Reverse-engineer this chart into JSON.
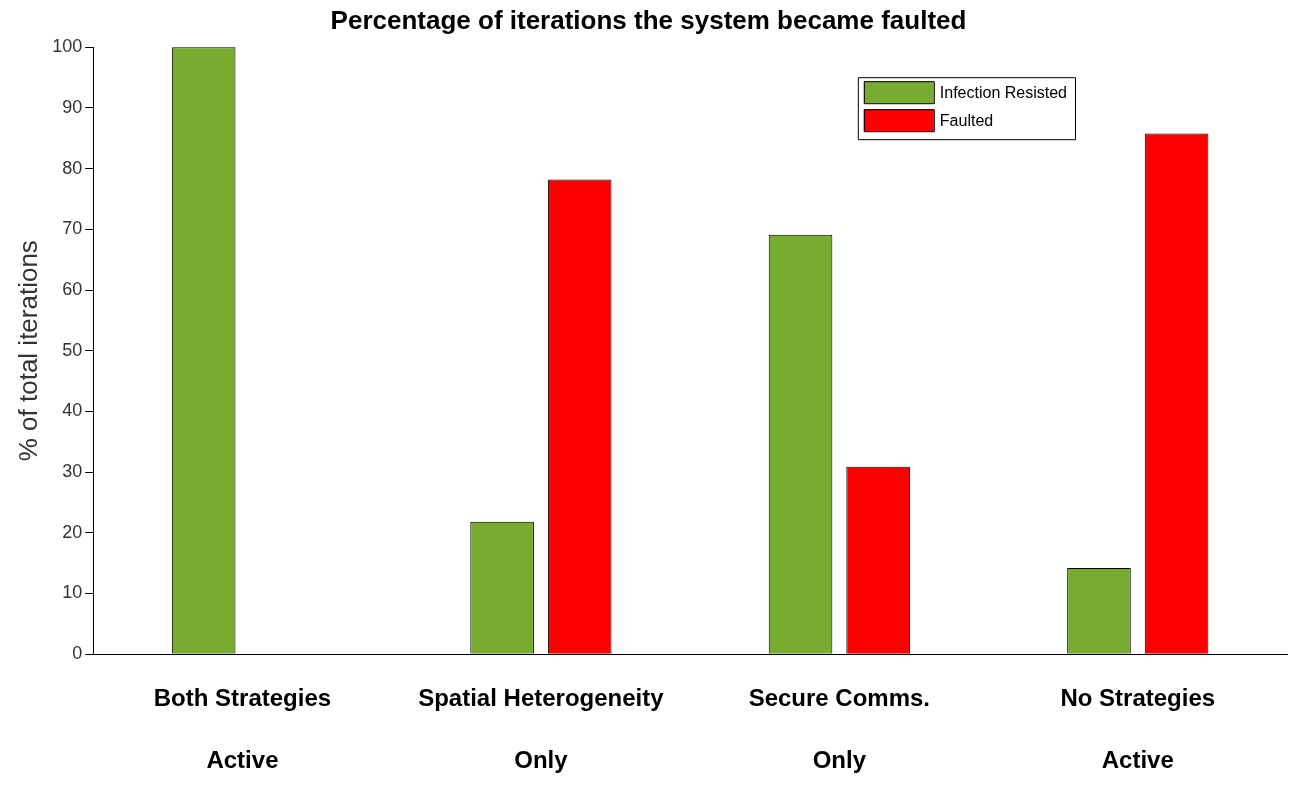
{
  "chart_data": {
    "type": "bar",
    "title": "Percentage of iterations the system became faulted",
    "ylabel": "% of total iterations",
    "categories": [
      "Both Strategies\nActive",
      "Spatial Heterogeneity\nOnly",
      "Secure Comms.\nOnly",
      "No Strategies\nActive"
    ],
    "series": [
      {
        "name": "Infection Resisted",
        "color": "#77ac30",
        "values": [
          100,
          21.8,
          69.1,
          14.2
        ]
      },
      {
        "name": "Faulted",
        "color": "#ff0000",
        "values": [
          0,
          78.2,
          30.9,
          85.8
        ]
      }
    ],
    "ylim": [
      0,
      100
    ],
    "yticks": [
      0,
      10,
      20,
      30,
      40,
      50,
      60,
      70,
      80,
      90,
      100
    ],
    "grid": false,
    "legend": "top right"
  }
}
